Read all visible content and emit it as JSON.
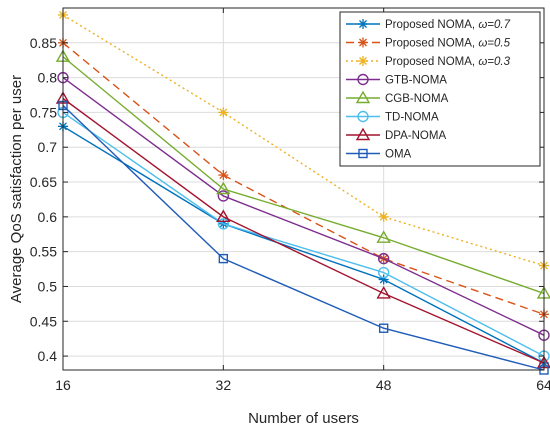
{
  "chart_data": {
    "type": "line",
    "title": "",
    "xlabel": "Number of users",
    "ylabel": "Average QoS satisfaction per user",
    "x": [
      16,
      32,
      48,
      64
    ],
    "x_tick_labels": [
      "16",
      "32",
      "48",
      "64"
    ],
    "xlim": [
      16,
      64
    ],
    "ylim": [
      0.38,
      0.9
    ],
    "y_ticks": [
      0.4,
      0.45,
      0.5,
      0.55,
      0.6,
      0.65,
      0.7,
      0.75,
      0.8,
      0.85
    ],
    "y_tick_labels": [
      "0.4",
      "0.45",
      "0.5",
      "0.55",
      "0.6",
      "0.65",
      "0.7",
      "0.75",
      "0.8",
      "0.85"
    ],
    "grid": true,
    "legend_position": "top-right",
    "series": [
      {
        "name": "Proposed NOMA, ",
        "omega": "ω=0.7",
        "values": [
          0.73,
          0.59,
          0.51,
          0.39
        ],
        "color": "#0072BD",
        "dash": "solid",
        "marker": "asterisk"
      },
      {
        "name": "Proposed NOMA, ",
        "omega": "ω=0.5",
        "values": [
          0.85,
          0.66,
          0.54,
          0.46
        ],
        "color": "#D95319",
        "dash": "dashed",
        "marker": "asterisk"
      },
      {
        "name": "Proposed NOMA, ",
        "omega": "ω=0.3",
        "values": [
          0.89,
          0.75,
          0.6,
          0.53
        ],
        "color": "#EDB120",
        "dash": "dotted",
        "marker": "asterisk"
      },
      {
        "name": "GTB-NOMA",
        "values": [
          0.8,
          0.63,
          0.54,
          0.43
        ],
        "color": "#7E2F8E",
        "dash": "solid",
        "marker": "circle"
      },
      {
        "name": "CGB-NOMA",
        "values": [
          0.83,
          0.64,
          0.57,
          0.49
        ],
        "color": "#77AC30",
        "dash": "solid",
        "marker": "triangle"
      },
      {
        "name": "TD-NOMA",
        "values": [
          0.75,
          0.59,
          0.52,
          0.4
        ],
        "color": "#4DBEEE",
        "dash": "solid",
        "marker": "circle"
      },
      {
        "name": "DPA-NOMA",
        "values": [
          0.77,
          0.6,
          0.49,
          0.39
        ],
        "color": "#A2142F",
        "dash": "solid",
        "marker": "triangle"
      },
      {
        "name": "OMA",
        "values": [
          0.76,
          0.54,
          0.44,
          0.38
        ],
        "color": "#1F5CB8",
        "dash": "solid",
        "marker": "square"
      }
    ]
  }
}
